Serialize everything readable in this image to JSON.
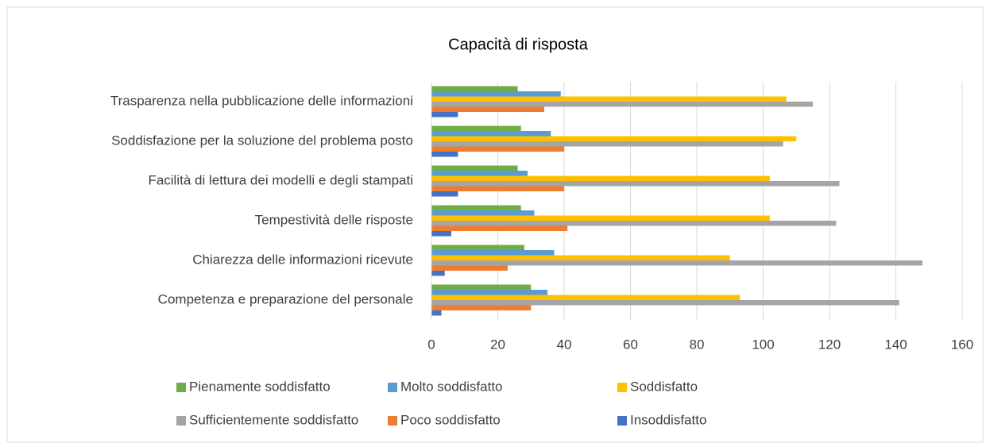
{
  "chart_data": {
    "type": "bar",
    "orientation": "horizontal",
    "title": "Capacità di risposta",
    "categories": [
      "Competenza e preparazione del personale",
      "Chiarezza delle informazioni ricevute",
      "Tempestività delle risposte",
      "Facilità di lettura dei modelli e degli stampati",
      "Soddisfazione per la soluzione del problema posto",
      "Trasparenza nella pubblicazione delle informazioni"
    ],
    "series": [
      {
        "name": "Pienamente soddisfatto",
        "color": "#70ad47",
        "values": [
          30,
          28,
          27,
          26,
          27,
          26
        ]
      },
      {
        "name": "Molto soddisfatto",
        "color": "#5b9bd5",
        "values": [
          35,
          37,
          31,
          29,
          36,
          39
        ]
      },
      {
        "name": "Soddisfatto",
        "color": "#ffc000",
        "values": [
          93,
          90,
          102,
          102,
          110,
          107
        ]
      },
      {
        "name": "Sufficientemente soddisfatto",
        "color": "#a5a5a5",
        "values": [
          141,
          148,
          122,
          123,
          106,
          115
        ]
      },
      {
        "name": "Poco soddisfatto",
        "color": "#ed7d31",
        "values": [
          30,
          23,
          41,
          40,
          40,
          34
        ]
      },
      {
        "name": "Insoddisfatto",
        "color": "#4472c4",
        "values": [
          3,
          4,
          6,
          8,
          8,
          8
        ]
      }
    ],
    "xlim": [
      0,
      160
    ],
    "xticks": [
      0,
      20,
      40,
      60,
      80,
      100,
      120,
      140,
      160
    ],
    "grid": true,
    "legend": "bottom"
  }
}
